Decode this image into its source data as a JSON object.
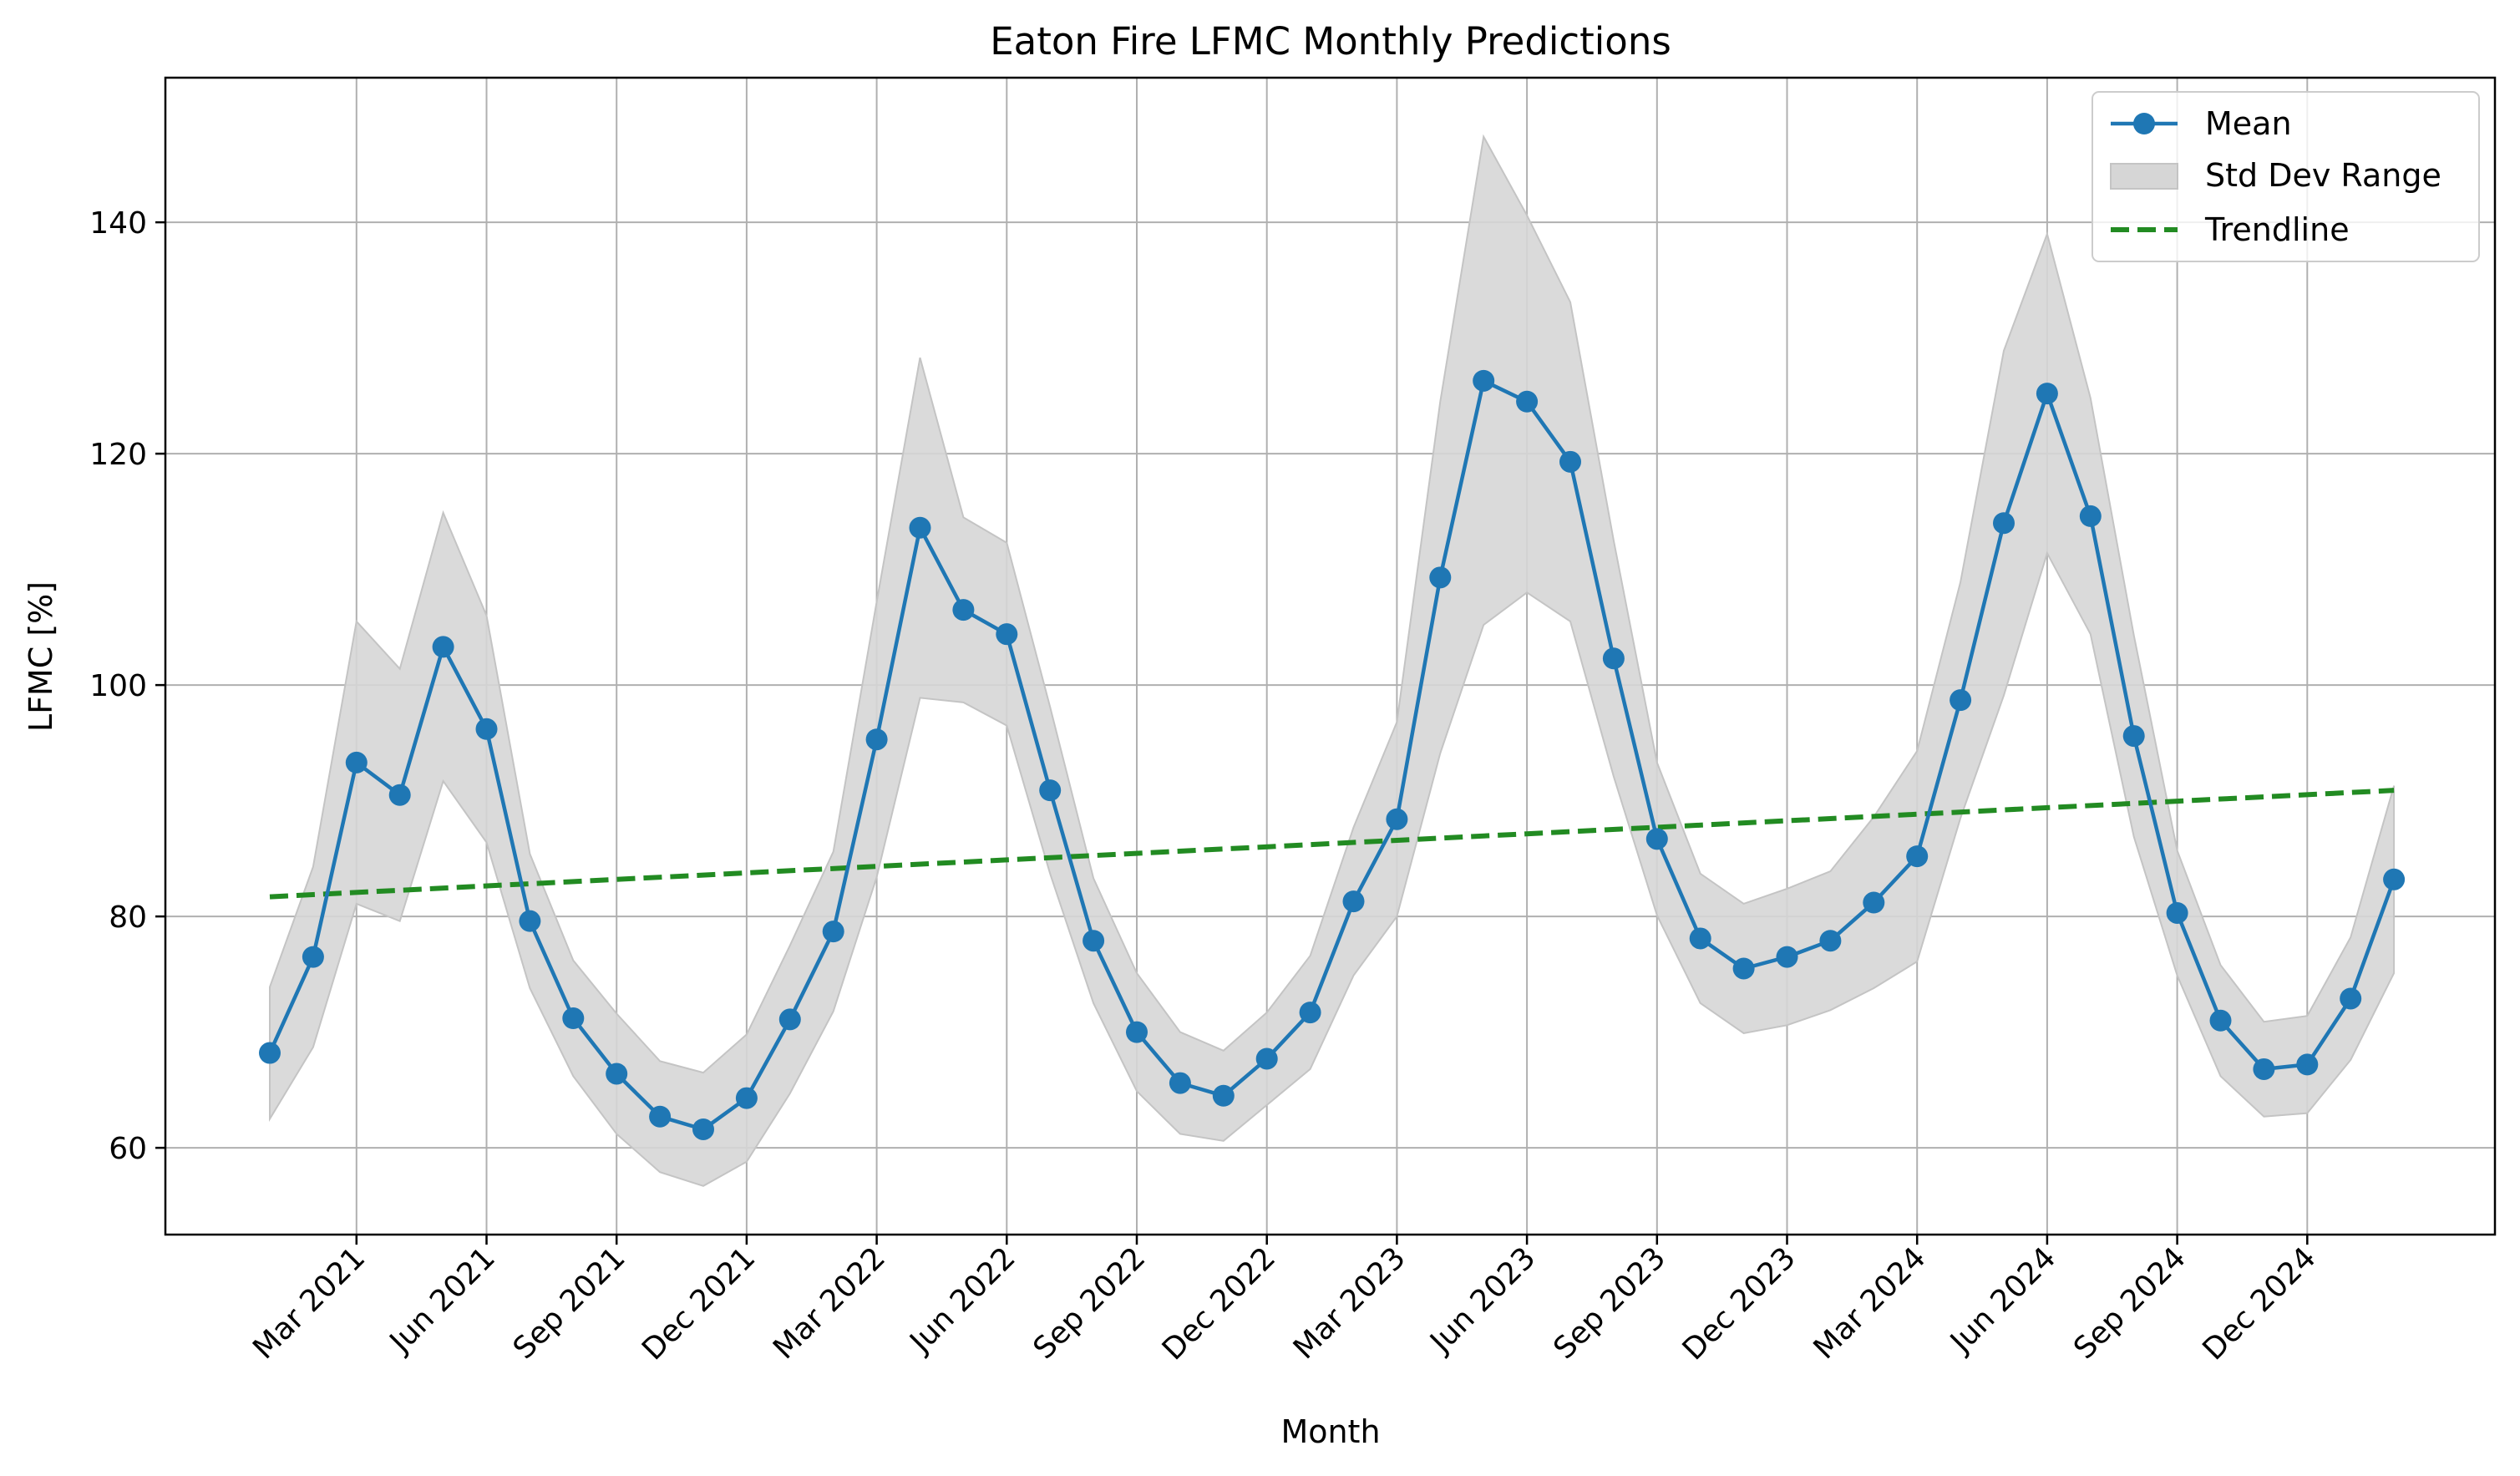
{
  "chart_data": {
    "type": "line",
    "title": "Eaton Fire LFMC Monthly Predictions",
    "xlabel": "Month",
    "ylabel": "LFMC [%]",
    "ylim": [
      52.5,
      152.5
    ],
    "yticks": [
      60,
      80,
      100,
      120,
      140
    ],
    "grid": true,
    "legend_position": "top-right",
    "x_dates": [
      "2021-01",
      "2021-02",
      "2021-03",
      "2021-04",
      "2021-05",
      "2021-06",
      "2021-07",
      "2021-08",
      "2021-09",
      "2021-10",
      "2021-11",
      "2021-12",
      "2022-01",
      "2022-02",
      "2022-03",
      "2022-04",
      "2022-05",
      "2022-06",
      "2022-07",
      "2022-08",
      "2022-09",
      "2022-10",
      "2022-11",
      "2022-12",
      "2023-01",
      "2023-02",
      "2023-03",
      "2023-04",
      "2023-05",
      "2023-06",
      "2023-07",
      "2023-08",
      "2023-09",
      "2023-10",
      "2023-11",
      "2023-12",
      "2024-01",
      "2024-02",
      "2024-03",
      "2024-04",
      "2024-05",
      "2024-06",
      "2024-07",
      "2024-08",
      "2024-09",
      "2024-10",
      "2024-11",
      "2024-12",
      "2025-01",
      "2025-02"
    ],
    "x_tick_positions": [
      2,
      5,
      8,
      11,
      14,
      17,
      20,
      23,
      26,
      29,
      32,
      35,
      38,
      41,
      44,
      47
    ],
    "x_tick_labels": [
      "Mar 2021",
      "Jun 2021",
      "Sep 2021",
      "Dec 2021",
      "Mar 2022",
      "Jun 2022",
      "Sep 2022",
      "Dec 2022",
      "Mar 2023",
      "Jun 2023",
      "Sep 2023",
      "Dec 2023",
      "Mar 2024",
      "Jun 2024",
      "Sep 2024",
      "Dec 2024"
    ],
    "series": [
      {
        "name": "Mean",
        "color": "#1f77b4",
        "values": [
          68.2,
          76.5,
          93.3,
          90.5,
          103.3,
          96.2,
          79.6,
          71.2,
          66.4,
          62.7,
          61.6,
          64.3,
          71.1,
          78.7,
          95.3,
          113.6,
          106.5,
          104.4,
          90.9,
          77.9,
          70.0,
          65.6,
          64.5,
          67.7,
          71.7,
          81.3,
          88.4,
          109.3,
          126.3,
          124.5,
          119.3,
          102.3,
          86.7,
          78.1,
          75.5,
          76.5,
          77.9,
          81.2,
          85.2,
          98.7,
          114.0,
          125.2,
          114.6,
          95.6,
          80.3,
          71.0,
          66.8,
          67.2,
          72.9,
          83.2
        ]
      },
      {
        "name": "Std Dev Range",
        "color": "#d6d6d6",
        "upper": [
          73.9,
          84.3,
          105.5,
          101.4,
          114.9,
          106.0,
          85.4,
          76.2,
          71.6,
          67.5,
          66.5,
          69.8,
          77.5,
          85.6,
          107.2,
          128.3,
          114.5,
          112.3,
          98.1,
          83.3,
          75.1,
          70.0,
          68.4,
          71.7,
          76.6,
          87.7,
          96.8,
          124.5,
          147.4,
          140.6,
          133.1,
          112.5,
          93.3,
          83.7,
          81.1,
          82.4,
          83.9,
          88.6,
          94.3,
          108.9,
          128.9,
          139.0,
          124.8,
          104.3,
          85.7,
          75.8,
          70.9,
          71.4,
          78.2,
          91.3
        ],
        "lower": [
          62.5,
          68.7,
          81.1,
          79.6,
          91.7,
          86.4,
          73.8,
          66.2,
          61.2,
          57.9,
          56.7,
          58.8,
          64.7,
          71.8,
          83.4,
          98.9,
          98.5,
          96.5,
          83.7,
          72.5,
          64.9,
          61.2,
          60.6,
          63.7,
          66.8,
          74.9,
          80.0,
          94.1,
          105.2,
          108.0,
          105.5,
          92.1,
          80.1,
          72.5,
          69.9,
          70.6,
          71.9,
          73.8,
          76.1,
          88.5,
          99.1,
          111.4,
          104.4,
          86.9,
          74.9,
          66.2,
          62.7,
          63.0,
          67.6,
          75.1
        ]
      },
      {
        "name": "Trendline",
        "color": "#228b22",
        "style": "dashed",
        "start": 81.7,
        "end": 90.9
      }
    ]
  }
}
